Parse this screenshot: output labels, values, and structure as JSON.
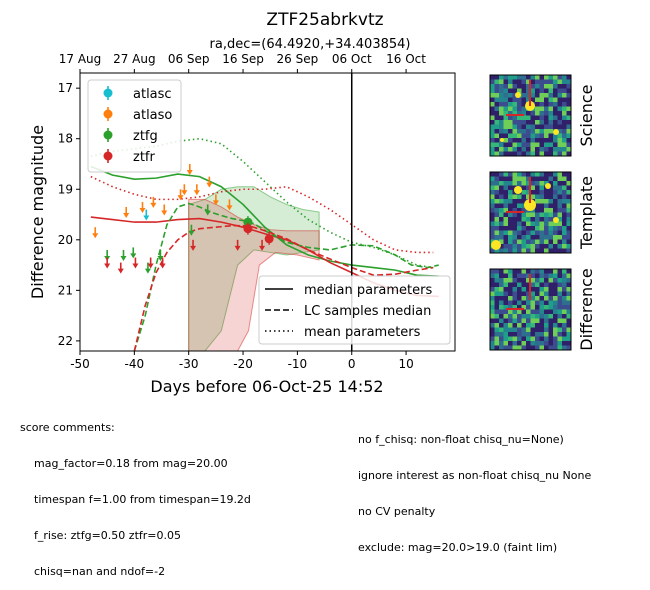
{
  "chart_data": {
    "type": "scatter",
    "title": "ZTF25abrkvtz",
    "subtitle": "ra,dec=(64.4920,+34.403854)",
    "xlabel": "Days before 06-Oct-25 14:52",
    "ylabel": "Difference magnitude",
    "xlim": [
      -50,
      19
    ],
    "ylim": [
      22.2,
      16.7
    ],
    "x_ticks": [
      -50,
      -40,
      -30,
      -20,
      -10,
      0,
      10
    ],
    "y_ticks": [
      17,
      18,
      19,
      20,
      21,
      22
    ],
    "top_axis": {
      "labels": [
        {
          "x": -50,
          "label": "17 Aug"
        },
        {
          "x": -40,
          "label": "27 Aug"
        },
        {
          "x": -30,
          "label": "06 Sep"
        },
        {
          "x": -20,
          "label": "16 Sep"
        },
        {
          "x": -10,
          "label": "26 Sep"
        },
        {
          "x": 0,
          "label": "06 Oct"
        },
        {
          "x": 10,
          "label": "16 Oct"
        }
      ]
    },
    "vline_x": 0,
    "legend_placement": "upper-left",
    "series": [
      {
        "name": "atlasc",
        "color": "#17becf",
        "marker": "errorbar",
        "points": []
      },
      {
        "name": "atlaso",
        "color": "#ff7f0e",
        "marker": "errorbar",
        "points": []
      },
      {
        "name": "ztfg",
        "color": "#2ca02c",
        "marker": "errorbar",
        "points": []
      },
      {
        "name": "ztfr",
        "color": "#d62728",
        "marker": "errorbar",
        "points": []
      },
      {
        "name": "atlasc-upperlimits",
        "color": "#17becf",
        "marker": "down-arrow",
        "points": [
          [
            -37.8,
            19.5
          ]
        ]
      },
      {
        "name": "atlaso-upperlimits",
        "color": "#ff7f0e",
        "marker": "down-arrow",
        "points": [
          [
            -47.2,
            19.85
          ],
          [
            -41.5,
            19.45
          ],
          [
            -38.5,
            19.35
          ],
          [
            -36.5,
            19.25
          ],
          [
            -34.5,
            19.4
          ],
          [
            -31.5,
            19.1
          ],
          [
            -30.8,
            19.0
          ],
          [
            -29.8,
            18.6
          ],
          [
            -28.5,
            19.0
          ],
          [
            -26.2,
            18.85
          ],
          [
            -25.0,
            19.2
          ],
          [
            -22.5,
            19.3
          ]
        ]
      },
      {
        "name": "ztfg-upperlimits",
        "color": "#2ca02c",
        "marker": "down-arrow",
        "points": [
          [
            -45.0,
            20.3
          ],
          [
            -42.0,
            20.3
          ],
          [
            -40.2,
            20.25
          ],
          [
            -37.5,
            20.55
          ],
          [
            -35.2,
            20.3
          ],
          [
            -29.5,
            19.8
          ],
          [
            -26.5,
            19.4
          ]
        ]
      },
      {
        "name": "ztfr-upperlimits",
        "color": "#d62728",
        "marker": "down-arrow",
        "points": [
          [
            -45.0,
            20.45
          ],
          [
            -42.5,
            20.55
          ],
          [
            -39.8,
            20.45
          ],
          [
            -37.0,
            20.45
          ],
          [
            -34.8,
            20.45
          ],
          [
            -29.2,
            20.1
          ],
          [
            -21.0,
            20.1
          ],
          [
            -16.5,
            20.1
          ]
        ]
      },
      {
        "name": "ztfg-detections",
        "color": "#2ca02c",
        "marker": "circle",
        "points": [
          [
            -19.1,
            19.65
          ]
        ]
      },
      {
        "name": "ztfr-detections",
        "color": "#d62728",
        "marker": "circle",
        "points": [
          [
            -19.1,
            19.78
          ],
          [
            -15.2,
            19.98
          ]
        ]
      }
    ],
    "model_curves": [
      {
        "name": "median parameters",
        "style": "solid",
        "band": "ztfg",
        "color": "#2ca02c",
        "points": [
          [
            -48,
            18.55
          ],
          [
            -44,
            18.72
          ],
          [
            -40,
            18.8
          ],
          [
            -36,
            18.78
          ],
          [
            -32,
            18.7
          ],
          [
            -28,
            18.75
          ],
          [
            -24,
            18.95
          ],
          [
            -20,
            19.3
          ],
          [
            -16,
            19.75
          ],
          [
            -12,
            20.1
          ],
          [
            -8,
            20.3
          ],
          [
            -4,
            20.42
          ],
          [
            0,
            20.5
          ],
          [
            4,
            20.55
          ],
          [
            8,
            20.6
          ],
          [
            12,
            20.7
          ],
          [
            16,
            20.72
          ]
        ]
      },
      {
        "name": "median parameters",
        "style": "solid",
        "band": "ztfr",
        "color": "#d62728",
        "points": [
          [
            -48,
            19.55
          ],
          [
            -44,
            19.6
          ],
          [
            -40,
            19.65
          ],
          [
            -36,
            19.65
          ],
          [
            -32,
            19.6
          ],
          [
            -28,
            19.58
          ],
          [
            -24,
            19.65
          ],
          [
            -20,
            19.75
          ],
          [
            -16,
            19.88
          ],
          [
            -12,
            20.0
          ],
          [
            -8,
            20.2
          ],
          [
            -4,
            20.45
          ],
          [
            0,
            20.65
          ],
          [
            4,
            20.85
          ],
          [
            8,
            21.0
          ],
          [
            12,
            21.1
          ],
          [
            16,
            21.12
          ]
        ]
      },
      {
        "name": "LC samples median",
        "style": "dashed",
        "band": "ztfg",
        "color": "#2ca02c",
        "points": [
          [
            -40,
            22.2
          ],
          [
            -38,
            21.5
          ],
          [
            -36,
            20.5
          ],
          [
            -34,
            19.7
          ],
          [
            -32,
            19.35
          ],
          [
            -30,
            19.28
          ],
          [
            -28,
            19.35
          ],
          [
            -26,
            19.45
          ],
          [
            -24,
            19.52
          ],
          [
            -22,
            19.58
          ],
          [
            -20,
            19.62
          ],
          [
            -18,
            19.68
          ],
          [
            -15,
            19.88
          ],
          [
            -12,
            20.05
          ],
          [
            -8,
            20.15
          ],
          [
            -4,
            20.2
          ],
          [
            0,
            20.1
          ],
          [
            4,
            20.12
          ],
          [
            8,
            20.3
          ],
          [
            11,
            20.5
          ],
          [
            14,
            20.55
          ],
          [
            16,
            20.5
          ]
        ]
      },
      {
        "name": "LC samples median",
        "style": "dashed",
        "band": "ztfr",
        "color": "#d62728",
        "points": [
          [
            -40,
            22.2
          ],
          [
            -38,
            21.3
          ],
          [
            -36,
            20.65
          ],
          [
            -34,
            20.25
          ],
          [
            -32,
            20.0
          ],
          [
            -30,
            19.85
          ],
          [
            -28,
            19.78
          ],
          [
            -25,
            19.75
          ],
          [
            -22,
            19.72
          ],
          [
            -19,
            19.72
          ],
          [
            -16,
            19.82
          ],
          [
            -12,
            19.98
          ],
          [
            -8,
            20.2
          ],
          [
            -4,
            20.38
          ],
          [
            0,
            20.55
          ],
          [
            4,
            20.7
          ],
          [
            8,
            20.68
          ],
          [
            12,
            20.6
          ],
          [
            15,
            20.55
          ]
        ]
      },
      {
        "name": "mean parameters",
        "style": "dotted",
        "band": "ztfg",
        "color": "#2ca02c",
        "points": [
          [
            -48,
            18.35
          ],
          [
            -44,
            18.25
          ],
          [
            -40,
            18.2
          ],
          [
            -36,
            18.15
          ],
          [
            -32,
            18.05
          ],
          [
            -28,
            18.0
          ],
          [
            -24,
            18.1
          ],
          [
            -20,
            18.45
          ],
          [
            -16,
            18.85
          ],
          [
            -12,
            19.25
          ],
          [
            -8,
            19.6
          ],
          [
            -4,
            19.85
          ],
          [
            0,
            20.05
          ],
          [
            4,
            20.15
          ],
          [
            8,
            20.3
          ],
          [
            12,
            20.5
          ],
          [
            15,
            20.55
          ]
        ]
      },
      {
        "name": "mean parameters",
        "style": "dotted",
        "band": "ztfr",
        "color": "#d62728",
        "points": [
          [
            -48,
            18.75
          ],
          [
            -44,
            18.95
          ],
          [
            -40,
            19.1
          ],
          [
            -36,
            19.2
          ],
          [
            -32,
            19.2
          ],
          [
            -28,
            19.15
          ],
          [
            -24,
            19.05
          ],
          [
            -20,
            19.0
          ],
          [
            -16,
            19.0
          ],
          [
            -12,
            18.95
          ],
          [
            -8,
            19.15
          ],
          [
            -4,
            19.4
          ],
          [
            0,
            19.7
          ],
          [
            4,
            20.0
          ],
          [
            8,
            20.2
          ],
          [
            12,
            20.25
          ],
          [
            15,
            20.25
          ]
        ]
      }
    ],
    "model_bands": [
      {
        "band": "ztfg",
        "color": "#2ca02c",
        "opacity": 0.2,
        "upper": [
          [
            -30,
            19.3
          ],
          [
            -27,
            19.2
          ],
          [
            -24,
            19.0
          ],
          [
            -21,
            18.95
          ],
          [
            -18,
            18.95
          ],
          [
            -15,
            19.15
          ],
          [
            -12,
            19.3
          ],
          [
            -9,
            19.4
          ],
          [
            -6,
            19.45
          ]
        ],
        "lower": [
          [
            -30,
            22.2
          ],
          [
            -27,
            22.2
          ],
          [
            -24,
            21.8
          ],
          [
            -21,
            20.5
          ],
          [
            -18,
            20.2
          ],
          [
            -15,
            20.25
          ],
          [
            -12,
            20.3
          ],
          [
            -9,
            20.25
          ],
          [
            -6,
            20.2
          ]
        ]
      },
      {
        "name": "ztfr",
        "band": "ztfr",
        "color": "#d62728",
        "opacity": 0.2,
        "upper": [
          [
            -30,
            19.2
          ],
          [
            -27,
            19.2
          ],
          [
            -24,
            19.35
          ],
          [
            -21,
            19.55
          ],
          [
            -18,
            19.7
          ],
          [
            -15,
            19.8
          ],
          [
            -12,
            19.82
          ],
          [
            -9,
            19.82
          ],
          [
            -6,
            19.82
          ]
        ],
        "lower": [
          [
            -30,
            22.2
          ],
          [
            -27,
            22.2
          ],
          [
            -24,
            22.2
          ],
          [
            -21,
            22.2
          ],
          [
            -19,
            21.8
          ],
          [
            -17,
            20.5
          ],
          [
            -14,
            20.25
          ],
          [
            -10,
            20.3
          ],
          [
            -6,
            20.4
          ]
        ]
      }
    ]
  },
  "legend_bands": [
    {
      "label": "atlasc",
      "color": "#17becf"
    },
    {
      "label": "atlaso",
      "color": "#ff7f0e"
    },
    {
      "label": "ztfg",
      "color": "#2ca02c"
    },
    {
      "label": "ztfr",
      "color": "#d62728"
    }
  ],
  "legend_lines": [
    {
      "label": "median parameters",
      "style": "solid"
    },
    {
      "label": "LC samples median",
      "style": "dashed"
    },
    {
      "label": "mean parameters",
      "style": "dotted"
    }
  ],
  "cutouts": [
    {
      "label": "Science"
    },
    {
      "label": "Template"
    },
    {
      "label": "Difference"
    }
  ],
  "score_comments": {
    "header": "score comments:",
    "left": [
      "mag_factor=0.18 from mag=20.00",
      "timespan f=1.00 from timespan=19.2d",
      "f_rise: ztfg=0.50 ztfr=0.05",
      "chisq=nan and ndof=-2"
    ],
    "right": [
      "no f_chisq: non-float chisq_nu=None)",
      "ignore interest as non-float chisq_nu None",
      "no CV penalty",
      "exclude: mag=20.0>19.0 (faint lim)"
    ]
  }
}
